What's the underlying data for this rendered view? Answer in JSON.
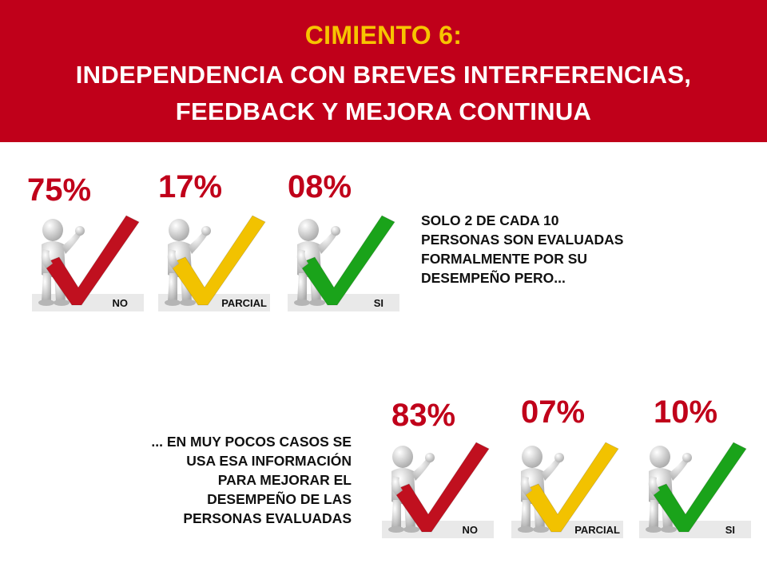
{
  "header": {
    "title": "CIMIENTO 6:",
    "subtitle_line1": "INDEPENDENCIA CON BREVES INTERFERENCIAS,",
    "subtitle_line2": "FEEDBACK Y MEJORA CONTINUA"
  },
  "top_group": {
    "items": [
      {
        "percent": "75%",
        "label": "NO",
        "check_color": "#c0101f"
      },
      {
        "percent": "17%",
        "label": "PARCIAL",
        "check_color": "#f2c200"
      },
      {
        "percent": "08%",
        "label": "SI",
        "check_color": "#1aa31a"
      }
    ],
    "note_lines": [
      "SOLO 2 DE CADA 10",
      "PERSONAS SON EVALUADAS",
      "FORMALMENTE POR SU",
      "DESEMPEÑO PERO..."
    ]
  },
  "bottom_group": {
    "items": [
      {
        "percent": "83%",
        "label": "NO",
        "check_color": "#c0101f"
      },
      {
        "percent": "07%",
        "label": "PARCIAL",
        "check_color": "#f2c200"
      },
      {
        "percent": "10%",
        "label": "SI",
        "check_color": "#1aa31a"
      }
    ],
    "note_lines": [
      "... EN MUY POCOS CASOS SE",
      "USA ESA INFORMACIÓN",
      "PARA MEJORAR EL",
      "DESEMPEÑO DE LAS",
      "PERSONAS EVALUADAS"
    ]
  },
  "icons": {
    "figure": "person-figure-icon",
    "check": "checkmark-icon"
  }
}
